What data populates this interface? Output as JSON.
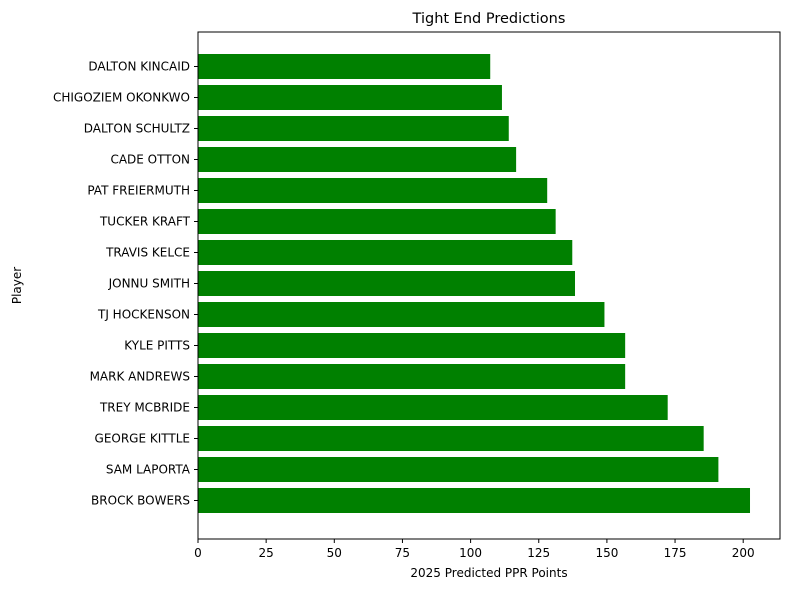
{
  "chart_data": {
    "type": "bar",
    "orientation": "horizontal",
    "title": "Tight End Predictions",
    "xlabel": "2025 Predicted PPR Points",
    "ylabel": "Player",
    "categories": [
      "BROCK BOWERS",
      "SAM LAPORTA",
      "GEORGE KITTLE",
      "TREY MCBRIDE",
      "MARK ANDREWS",
      "KYLE PITTS",
      "TJ HOCKENSON",
      "JONNU SMITH",
      "TRAVIS KELCE",
      "TUCKER KRAFT",
      "PAT FREIERMUTH",
      "CADE OTTON",
      "DALTON SCHULTZ",
      "CHIGOZIEM OKONKWO",
      "DALTON KINCAID"
    ],
    "values": [
      202.5,
      190.9,
      185.5,
      172.3,
      156.7,
      156.7,
      149.1,
      138.3,
      137.3,
      131.2,
      128.1,
      116.7,
      114.0,
      111.5,
      107.2
    ],
    "xlim": [
      0,
      213.5
    ],
    "xticks": [
      0,
      25,
      50,
      75,
      100,
      125,
      150,
      175,
      200
    ],
    "bar_color": "#008000",
    "grid": false
  }
}
